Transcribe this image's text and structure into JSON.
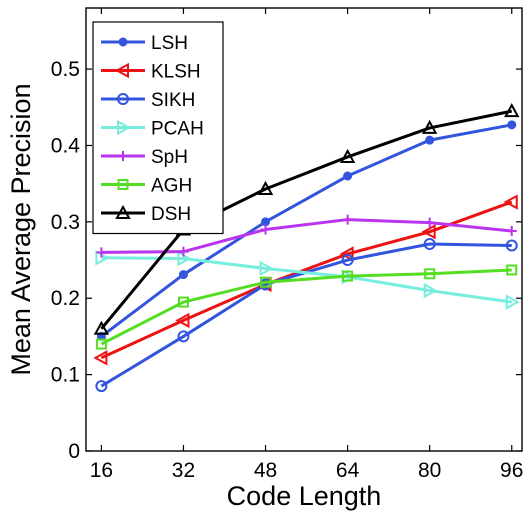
{
  "chart_data": {
    "type": "line",
    "xlabel": "Code Length",
    "ylabel": "Mean Average Precision",
    "x": [
      16,
      32,
      48,
      64,
      80,
      96
    ],
    "xlim": [
      13,
      98
    ],
    "ylim": [
      0,
      0.58
    ],
    "xticks": [
      "16",
      "32",
      "48",
      "64",
      "80",
      "96"
    ],
    "yticks": [
      {
        "value": 0,
        "label": "0"
      },
      {
        "value": 0.1,
        "label": "0.1"
      },
      {
        "value": 0.2,
        "label": "0.2"
      },
      {
        "value": 0.3,
        "label": "0.3"
      },
      {
        "value": 0.4,
        "label": "0.4"
      },
      {
        "value": 0.5,
        "label": "0.5"
      }
    ],
    "grid": false,
    "legend_position": "top-left",
    "series": [
      {
        "name": "LSH",
        "color": "#3355dd",
        "marker": "dot",
        "values": [
          0.15,
          0.231,
          0.3,
          0.36,
          0.407,
          0.427
        ]
      },
      {
        "name": "KLSH",
        "color": "#ee1111",
        "marker": "triangle-left",
        "values": [
          0.122,
          0.171,
          0.218,
          0.258,
          0.287,
          0.326
        ]
      },
      {
        "name": "SIKH",
        "color": "#3355dd",
        "marker": "circle",
        "values": [
          0.085,
          0.15,
          0.218,
          0.25,
          0.271,
          0.269
        ]
      },
      {
        "name": "PCAH",
        "color": "#77eedd",
        "marker": "triangle-right",
        "values": [
          0.253,
          0.252,
          0.239,
          0.228,
          0.21,
          0.195
        ]
      },
      {
        "name": "SpH",
        "color": "#bb33ee",
        "marker": "plus",
        "values": [
          0.26,
          0.261,
          0.29,
          0.303,
          0.299,
          0.288
        ]
      },
      {
        "name": "AGH",
        "color": "#55dd22",
        "marker": "square",
        "values": [
          0.14,
          0.195,
          0.221,
          0.229,
          0.232,
          0.237
        ]
      },
      {
        "name": "DSH",
        "color": "#000000",
        "marker": "triangle-up",
        "values": [
          0.16,
          0.29,
          0.343,
          0.385,
          0.423,
          0.445
        ]
      }
    ]
  }
}
